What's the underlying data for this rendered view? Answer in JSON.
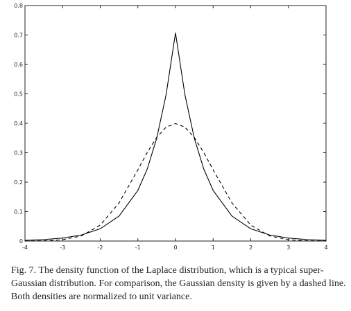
{
  "chart_data": {
    "type": "line",
    "xlim": [
      -4,
      4
    ],
    "ylim": [
      0,
      0.8
    ],
    "x_ticks": [
      -4,
      -3,
      -2,
      -1,
      0,
      1,
      2,
      3,
      4
    ],
    "y_ticks": [
      0,
      0.1,
      0.2,
      0.3,
      0.4,
      0.5,
      0.6,
      0.7,
      0.8
    ],
    "x_tick_labels": [
      "-4",
      "-3",
      "-2",
      "-1",
      "0",
      "1",
      "2",
      "3",
      "4"
    ],
    "y_tick_labels": [
      "0",
      "0.1",
      "0.2",
      "0.3",
      "0.4",
      "0.5",
      "0.6",
      "0.7",
      "0.8"
    ],
    "grid": false,
    "series": [
      {
        "style": "solid",
        "color": "#000000",
        "x": [
          -4,
          -3.5,
          -3,
          -2.5,
          -2,
          -1.5,
          -1,
          -0.75,
          -0.5,
          -0.25,
          0,
          0.25,
          0.5,
          0.75,
          1,
          1.5,
          2,
          2.5,
          3,
          3.5,
          4
        ],
        "y": [
          0.0025,
          0.005,
          0.0102,
          0.0206,
          0.0417,
          0.0848,
          0.172,
          0.245,
          0.349,
          0.497,
          0.707,
          0.497,
          0.349,
          0.245,
          0.172,
          0.0848,
          0.0417,
          0.0206,
          0.0102,
          0.005,
          0.0025
        ]
      },
      {
        "style": "dashed",
        "color": "#000000",
        "x": [
          -4,
          -3.5,
          -3,
          -2.5,
          -2,
          -1.5,
          -1,
          -0.75,
          -0.5,
          -0.25,
          0,
          0.25,
          0.5,
          0.75,
          1,
          1.5,
          2,
          2.5,
          3,
          3.5,
          4
        ],
        "y": [
          0.0001,
          0.0009,
          0.0044,
          0.0175,
          0.054,
          0.1295,
          0.242,
          0.301,
          0.352,
          0.387,
          0.399,
          0.387,
          0.352,
          0.301,
          0.242,
          0.1295,
          0.054,
          0.0175,
          0.0044,
          0.0009,
          0.0001
        ]
      }
    ]
  },
  "caption": "Fig. 7. The density function of the Laplace distribution, which is a typical super-Gaussian distribution. For comparison, the Gaussian density is given by a dashed line. Both densities are normalized to unit variance."
}
